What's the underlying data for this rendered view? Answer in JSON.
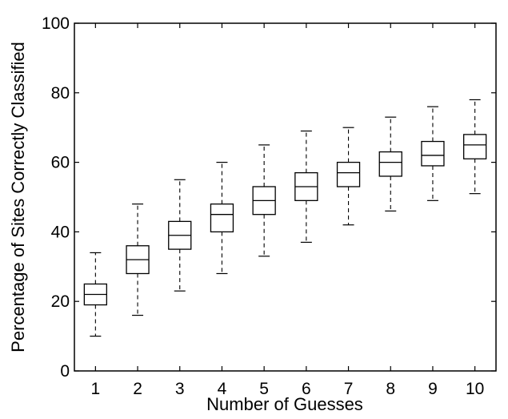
{
  "chart_data": {
    "type": "box",
    "xlabel": "Number of Guesses",
    "ylabel": "Percentage of Sites Correctly Classified",
    "ylim": [
      0,
      100
    ],
    "yticks": [
      0,
      20,
      40,
      60,
      80,
      100
    ],
    "categories": [
      "1",
      "2",
      "3",
      "4",
      "5",
      "6",
      "7",
      "8",
      "9",
      "10"
    ],
    "boxes": [
      {
        "min": 10,
        "q1": 19,
        "median": 22,
        "q3": 25,
        "max": 34
      },
      {
        "min": 16,
        "q1": 28,
        "median": 32,
        "q3": 36,
        "max": 48
      },
      {
        "min": 23,
        "q1": 35,
        "median": 39,
        "q3": 43,
        "max": 55
      },
      {
        "min": 28,
        "q1": 40,
        "median": 45,
        "q3": 48,
        "max": 60
      },
      {
        "min": 33,
        "q1": 45,
        "median": 49,
        "q3": 53,
        "max": 65
      },
      {
        "min": 37,
        "q1": 49,
        "median": 53,
        "q3": 57,
        "max": 69
      },
      {
        "min": 42,
        "q1": 53,
        "median": 57,
        "q3": 60,
        "max": 70
      },
      {
        "min": 46,
        "q1": 56,
        "median": 60,
        "q3": 63,
        "max": 73
      },
      {
        "min": 49,
        "q1": 59,
        "median": 62,
        "q3": 66,
        "max": 76
      },
      {
        "min": 51,
        "q1": 61,
        "median": 65,
        "q3": 68,
        "max": 78
      }
    ],
    "grid": false,
    "legend": "none",
    "colors": {
      "box": "#000000",
      "whisker": "#000000",
      "median": "#000000"
    }
  }
}
